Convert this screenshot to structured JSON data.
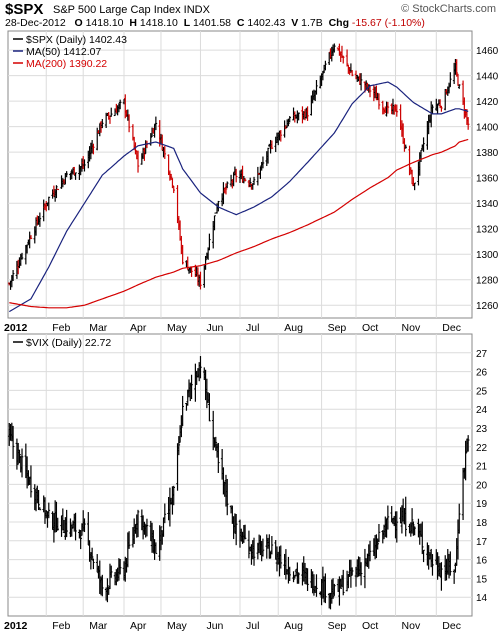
{
  "header": {
    "symbol": "$SPX",
    "name": "S&P 500 Large Cap Index INDX",
    "brand": "© StockCharts.com",
    "date": "28-Dec-2012",
    "open_label": "O",
    "open": "1418.10",
    "high_label": "H",
    "high": "1418.10",
    "low_label": "L",
    "low": "1401.58",
    "close_label": "C",
    "close": "1402.43",
    "volume_label": "V",
    "volume": "1.7B",
    "change_label": "Chg",
    "change": "-15.67 (-1.10%)"
  },
  "colors": {
    "price": "#000000",
    "down": "#cc0000",
    "ma50": "#1a237e",
    "ma200": "#d40000",
    "grid": "#dcdcdc"
  },
  "chart_data": [
    {
      "type": "line",
      "title": "$SPX S&P 500 Large Cap Index INDX",
      "style": "OHLC bars",
      "legend": [
        {
          "label": "$SPX (Daily) 1402.43",
          "color": "#000000"
        },
        {
          "label": "MA(50) 1412.07",
          "color": "#1a237e"
        },
        {
          "label": "MA(200) 1390.22",
          "color": "#d40000"
        }
      ],
      "ylim": [
        1250,
        1475
      ],
      "yticks": [
        1260,
        1280,
        1300,
        1320,
        1340,
        1360,
        1380,
        1400,
        1420,
        1440,
        1460
      ],
      "xticks": [
        "2012",
        "Feb",
        "Mar",
        "Apr",
        "May",
        "Jun",
        "Jul",
        "Aug",
        "Sep",
        "Oct",
        "Nov",
        "Dec"
      ],
      "series": [
        {
          "name": "$SPX (Daily)",
          "x": [
            "2012-01-03",
            "2012-01-20",
            "2012-02-03",
            "2012-02-17",
            "2012-03-02",
            "2012-03-16",
            "2012-04-02",
            "2012-04-13",
            "2012-04-27",
            "2012-05-11",
            "2012-05-18",
            "2012-06-01",
            "2012-06-15",
            "2012-06-29",
            "2012-07-13",
            "2012-07-27",
            "2012-08-10",
            "2012-08-24",
            "2012-09-14",
            "2012-09-28",
            "2012-10-12",
            "2012-10-26",
            "2012-11-02",
            "2012-11-15",
            "2012-11-30",
            "2012-12-07",
            "2012-12-18",
            "2012-12-21",
            "2012-12-28"
          ],
          "values": [
            1277,
            1315,
            1344,
            1362,
            1370,
            1404,
            1419,
            1370,
            1403,
            1353,
            1296,
            1278,
            1343,
            1362,
            1356,
            1386,
            1406,
            1411,
            1465,
            1441,
            1429,
            1412,
            1414,
            1353,
            1416,
            1418,
            1446,
            1430,
            1402
          ]
        },
        {
          "name": "MA(50)",
          "values": [
            1255,
            1265,
            1290,
            1318,
            1340,
            1362,
            1377,
            1385,
            1388,
            1383,
            1367,
            1348,
            1337,
            1331,
            1337,
            1345,
            1357,
            1372,
            1395,
            1418,
            1432,
            1435,
            1431,
            1419,
            1410,
            1410,
            1414,
            1414,
            1412
          ]
        },
        {
          "name": "MA(200)",
          "values": [
            1262,
            1259,
            1258,
            1258,
            1260,
            1265,
            1271,
            1276,
            1282,
            1286,
            1289,
            1291,
            1295,
            1301,
            1306,
            1312,
            1317,
            1323,
            1333,
            1343,
            1352,
            1360,
            1366,
            1372,
            1378,
            1380,
            1385,
            1388,
            1390
          ]
        }
      ]
    },
    {
      "type": "line",
      "title": "$VIX (Daily) 22.72",
      "style": "OHLC bars",
      "legend": [
        {
          "label": "$VIX (Daily) 22.72",
          "color": "#000000"
        }
      ],
      "ylim": [
        13,
        28
      ],
      "yticks": [
        14,
        15,
        16,
        17,
        18,
        19,
        20,
        21,
        22,
        23,
        24,
        25,
        26,
        27
      ],
      "xticks": [
        "2012",
        "Feb",
        "Mar",
        "Apr",
        "May",
        "Jun",
        "Jul",
        "Aug",
        "Sep",
        "Oct",
        "Nov",
        "Dec"
      ],
      "series": [
        {
          "name": "$VIX (Daily)",
          "x": [
            "2012-01-03",
            "2012-01-20",
            "2012-02-03",
            "2012-02-17",
            "2012-03-02",
            "2012-03-16",
            "2012-04-02",
            "2012-04-13",
            "2012-04-27",
            "2012-05-11",
            "2012-05-18",
            "2012-06-01",
            "2012-06-15",
            "2012-06-29",
            "2012-07-13",
            "2012-07-27",
            "2012-08-10",
            "2012-08-24",
            "2012-09-14",
            "2012-09-28",
            "2012-10-12",
            "2012-10-26",
            "2012-11-02",
            "2012-11-15",
            "2012-11-30",
            "2012-12-07",
            "2012-12-18",
            "2012-12-21",
            "2012-12-28"
          ],
          "values": [
            22.5,
            20.0,
            18.2,
            17.8,
            17.5,
            14.5,
            15.5,
            18.5,
            16.5,
            19.5,
            24.0,
            26.5,
            21.0,
            17.5,
            16.5,
            16.5,
            15.5,
            15.0,
            14.2,
            15.2,
            16.1,
            18.0,
            18.3,
            17.8,
            15.9,
            15.5,
            15.6,
            18.8,
            22.7
          ]
        }
      ]
    }
  ]
}
